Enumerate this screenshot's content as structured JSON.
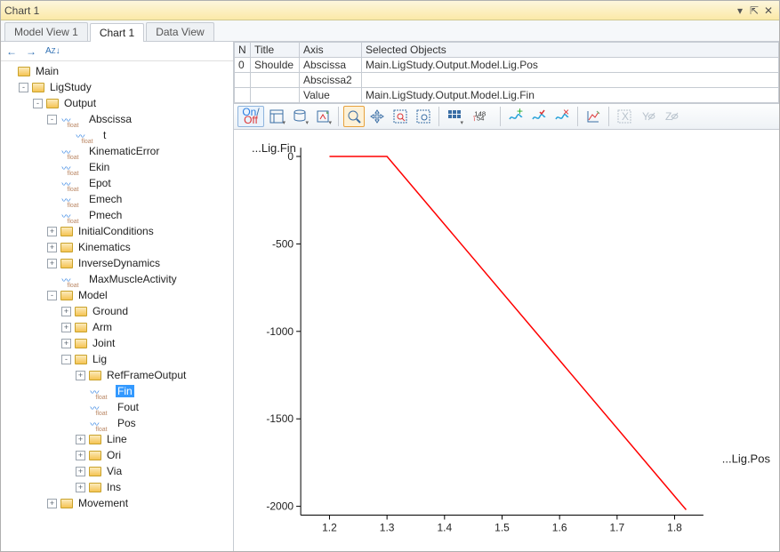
{
  "window": {
    "title": "Chart 1"
  },
  "tabs": [
    {
      "label": "Model View 1",
      "active": false
    },
    {
      "label": "Chart 1",
      "active": true
    },
    {
      "label": "Data View",
      "active": false
    }
  ],
  "sidebarToolbar": {
    "back": "←",
    "forward": "→",
    "sort": "A͓Z↓"
  },
  "tree": [
    {
      "d": 0,
      "e": "",
      "i": "folder",
      "t": "Main"
    },
    {
      "d": 1,
      "e": "-",
      "i": "folder",
      "t": "LigStudy"
    },
    {
      "d": 2,
      "e": "-",
      "i": "folder",
      "t": "Output"
    },
    {
      "d": 3,
      "e": "-",
      "i": "wave",
      "t": "Abscissa"
    },
    {
      "d": 4,
      "e": "",
      "i": "wave",
      "t": "t"
    },
    {
      "d": 3,
      "e": "",
      "i": "wave",
      "t": "KinematicError"
    },
    {
      "d": 3,
      "e": "",
      "i": "wave",
      "t": "Ekin"
    },
    {
      "d": 3,
      "e": "",
      "i": "wave",
      "t": "Epot"
    },
    {
      "d": 3,
      "e": "",
      "i": "wave",
      "t": "Emech"
    },
    {
      "d": 3,
      "e": "",
      "i": "wave",
      "t": "Pmech"
    },
    {
      "d": 3,
      "e": "+",
      "i": "folder",
      "t": "InitialConditions"
    },
    {
      "d": 3,
      "e": "+",
      "i": "folder",
      "t": "Kinematics"
    },
    {
      "d": 3,
      "e": "+",
      "i": "folder",
      "t": "InverseDynamics"
    },
    {
      "d": 3,
      "e": "",
      "i": "wave",
      "t": "MaxMuscleActivity"
    },
    {
      "d": 3,
      "e": "-",
      "i": "folder",
      "t": "Model"
    },
    {
      "d": 4,
      "e": "+",
      "i": "folder",
      "t": "Ground"
    },
    {
      "d": 4,
      "e": "+",
      "i": "folder",
      "t": "Arm"
    },
    {
      "d": 4,
      "e": "+",
      "i": "folder",
      "t": "Joint"
    },
    {
      "d": 4,
      "e": "-",
      "i": "folder",
      "t": "Lig"
    },
    {
      "d": 5,
      "e": "+",
      "i": "folder",
      "t": "RefFrameOutput"
    },
    {
      "d": 5,
      "e": "",
      "i": "wave",
      "t": "Fin",
      "sel": true
    },
    {
      "d": 5,
      "e": "",
      "i": "wave",
      "t": "Fout"
    },
    {
      "d": 5,
      "e": "",
      "i": "wave",
      "t": "Pos"
    },
    {
      "d": 5,
      "e": "+",
      "i": "folder",
      "t": "Line"
    },
    {
      "d": 5,
      "e": "+",
      "i": "folder",
      "t": "Ori"
    },
    {
      "d": 5,
      "e": "+",
      "i": "folder",
      "t": "Via"
    },
    {
      "d": 5,
      "e": "+",
      "i": "folder",
      "t": "Ins"
    },
    {
      "d": 3,
      "e": "+",
      "i": "folder",
      "t": "Movement"
    }
  ],
  "grid": {
    "headers": [
      "N",
      "Title",
      "Axis",
      "Selected Objects"
    ],
    "rows": [
      [
        "0",
        "Shoulde",
        "Abscissa",
        "Main.LigStudy.Output.Model.Lig.Pos"
      ],
      [
        "",
        "",
        "Abscissa2",
        ""
      ],
      [
        "",
        "",
        "Value",
        "Main.LigStudy.Output.Model.Lig.Fin"
      ]
    ]
  },
  "chartToolbar": {
    "onoff": "On/Off",
    "coords": {
      "a": "148",
      "b": "54"
    }
  },
  "chart": {
    "ylabel": "...Lig.Fin",
    "xlabel": "...Lig.Pos",
    "line_color": "#ff0000",
    "line_width": 1.5,
    "axis_color": "#000000",
    "background": "#ffffff",
    "xlim": [
      1.15,
      1.85
    ],
    "ylim": [
      -2050,
      50
    ],
    "xticks": [
      1.2,
      1.3,
      1.4,
      1.5,
      1.6,
      1.7,
      1.8
    ],
    "yticks": [
      0,
      -500,
      -1000,
      -1500,
      -2000
    ],
    "ytick_labels": [
      "0",
      "-500",
      "-1000",
      "-1500",
      "-2000"
    ],
    "xtick_labels": [
      "1.2",
      "1.3",
      "1.4",
      "1.5",
      "1.6",
      "1.7",
      "1.8"
    ],
    "data": [
      {
        "x": 1.2,
        "y": 0
      },
      {
        "x": 1.3,
        "y": 0
      },
      {
        "x": 1.82,
        "y": -2020
      }
    ]
  }
}
